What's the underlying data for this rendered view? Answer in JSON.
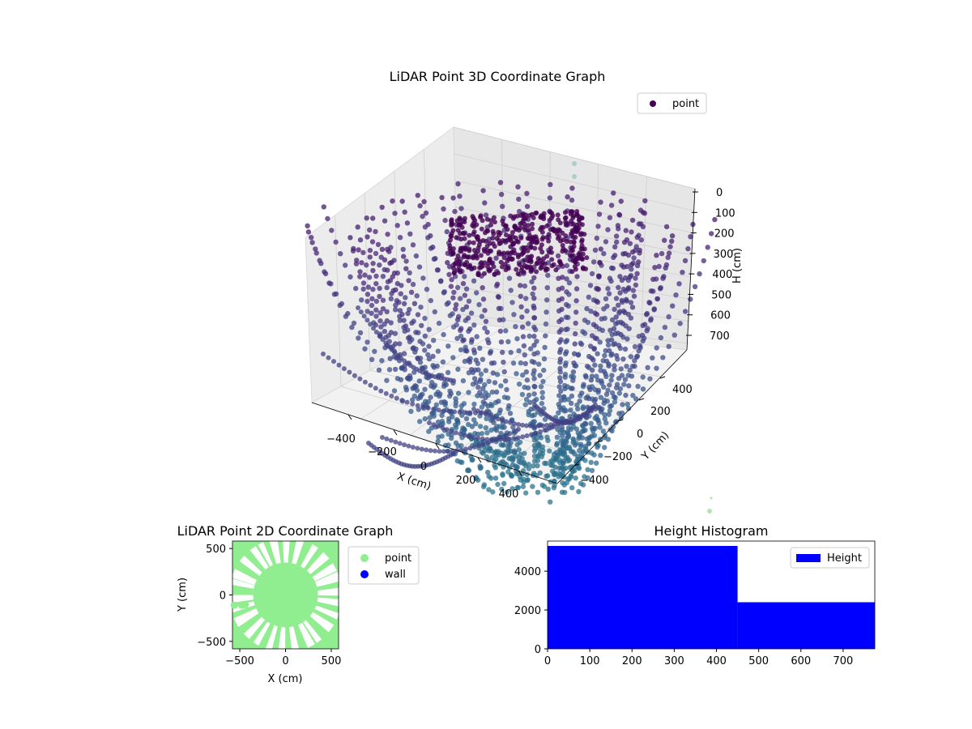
{
  "figure": {
    "background": "#ffffff"
  },
  "chart_data": [
    {
      "type": "scatter",
      "projection": "3d",
      "title": "LiDAR Point 3D Coordinate Graph",
      "xlabel": "X (cm)",
      "ylabel": "Y (cm)",
      "zlabel": "H (cm)",
      "x_ticks": [
        "−400",
        "−200",
        "0",
        "200",
        "400"
      ],
      "y_ticks": [
        "−400",
        "−200",
        "0",
        "200",
        "400"
      ],
      "z_ticks": [
        "0",
        "100",
        "200",
        "300",
        "400",
        "500",
        "600",
        "700"
      ],
      "xlim": [
        -550,
        550
      ],
      "ylim": [
        -550,
        550
      ],
      "zlim": [
        0,
        780
      ],
      "z_inverted": true,
      "legend": {
        "entries": [
          "point"
        ],
        "position": "top-right"
      },
      "colormap": "viridis",
      "colors": {
        "marker": "#440154",
        "pane": "#f2f2f2",
        "grid": "#cccccc"
      }
    },
    {
      "type": "scatter",
      "title": "LiDAR Point 2D Coordinate Graph",
      "xlabel": "X (cm)",
      "ylabel": "Y (cm)",
      "x_ticks": [
        -500,
        0,
        500
      ],
      "y_ticks": [
        -500,
        0,
        500
      ],
      "xlim": [
        -580,
        580
      ],
      "ylim": [
        -580,
        580
      ],
      "series": [
        {
          "name": "point",
          "color": "#90ee90"
        },
        {
          "name": "wall",
          "color": "#0000ff"
        }
      ],
      "legend_position": "outside-right"
    },
    {
      "type": "bar",
      "subtype": "histogram",
      "title": "Height Histogram",
      "series_name": "Height",
      "bins": [
        {
          "start": 0,
          "end": 450,
          "count": 5300
        },
        {
          "start": 450,
          "end": 775,
          "count": 2400
        }
      ],
      "x_ticks": [
        0,
        100,
        200,
        300,
        400,
        500,
        600,
        700
      ],
      "y_ticks": [
        0,
        2000,
        4000
      ],
      "xlim": [
        0,
        775
      ],
      "ylim": [
        0,
        5550
      ],
      "color": "#0000ff",
      "legend_position": "top-right"
    }
  ]
}
